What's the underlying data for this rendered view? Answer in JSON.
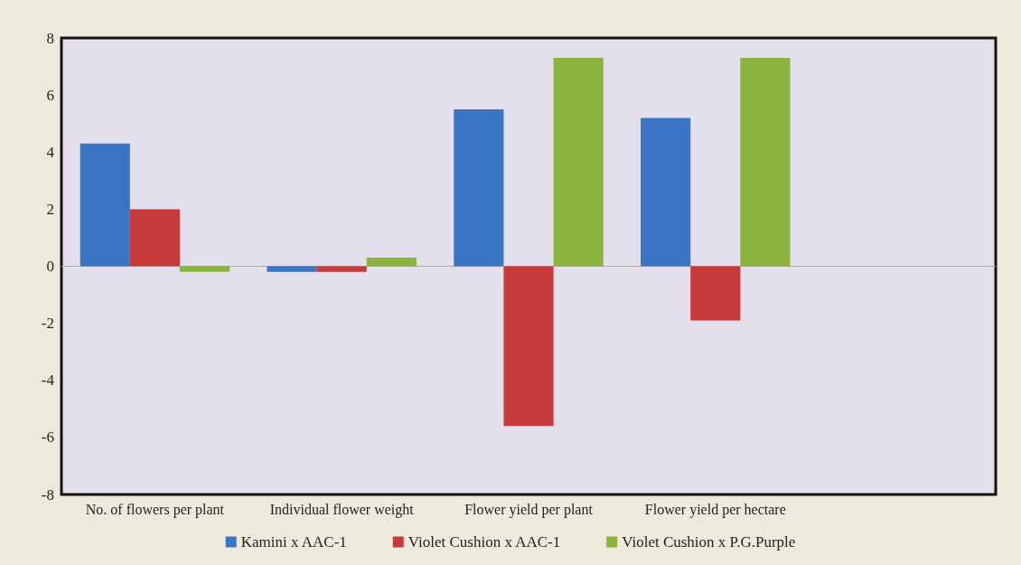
{
  "chart_data": {
    "type": "bar",
    "categories": [
      "No. of flowers per plant",
      "Individual flower weight",
      "Flower yield per plant",
      "Flower yield per hectare",
      null
    ],
    "series": [
      {
        "name": "Kamini x AAC-1",
        "color": "#3a74c4",
        "values": [
          4.3,
          -0.2,
          5.5,
          5.2,
          null
        ]
      },
      {
        "name": "Violet Cushion x AAC-1",
        "color": "#c8393a",
        "values": [
          2.0,
          -0.2,
          -5.6,
          -1.9,
          null
        ]
      },
      {
        "name": "Violet Cushion x P.G.Purple",
        "color": "#8ab43c",
        "values": [
          -0.2,
          0.3,
          7.3,
          7.3,
          null
        ]
      }
    ],
    "ylim": [
      -8,
      8
    ],
    "yticks": [
      -8,
      -6,
      -4,
      -2,
      0,
      2,
      4,
      6,
      8
    ],
    "legend": "bottom"
  }
}
